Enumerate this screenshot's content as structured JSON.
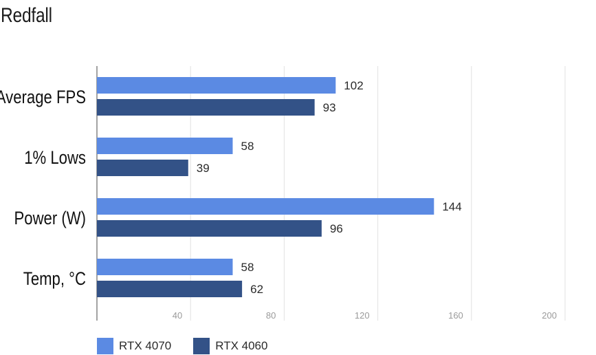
{
  "colors": {
    "series_1": "#5b8ae3",
    "series_2": "#335287",
    "grid": "#e2e2e2",
    "axis": "#444444"
  },
  "chart_data": {
    "type": "bar",
    "orientation": "horizontal",
    "title": "Redfall",
    "categories": [
      "Average FPS",
      "1% Lows",
      "Power (W)",
      "Temp, °C"
    ],
    "series": [
      {
        "name": "RTX 4070",
        "values": [
          102,
          58,
          144,
          58
        ]
      },
      {
        "name": "RTX 4060",
        "values": [
          93,
          39,
          96,
          62
        ]
      }
    ],
    "xlim": [
      0,
      200
    ],
    "xticks": [
      40,
      80,
      120,
      160,
      200
    ],
    "grid": true,
    "legend": "bottom-left"
  }
}
